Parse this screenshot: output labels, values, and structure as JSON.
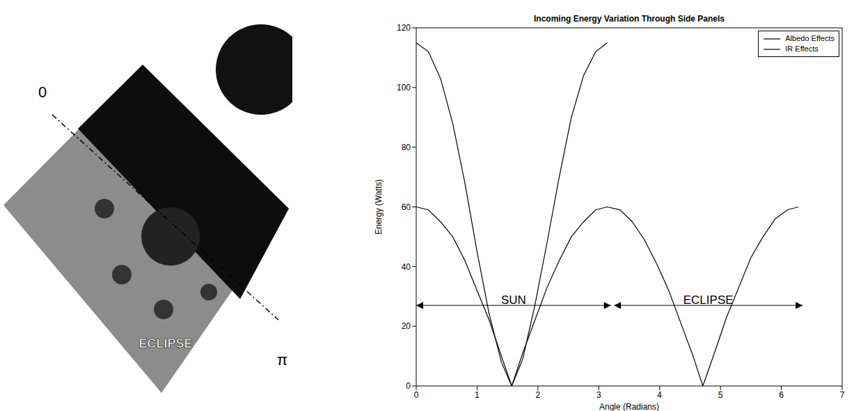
{
  "diagram": {
    "labels": {
      "start": "0",
      "end": "π",
      "eclipse": "ECLIPSE"
    }
  },
  "chart_data": {
    "type": "line",
    "title": "Incoming Energy Variation Through Side Panels",
    "x_label": "Angle (Radians)",
    "y_label": "Energy (Watts)",
    "x": [
      0,
      0.2,
      0.4,
      0.6,
      0.8,
      1.0,
      1.2,
      1.4,
      1.57,
      1.75,
      1.95,
      2.15,
      2.35,
      2.55,
      2.75,
      2.95,
      3.14,
      3.35,
      3.55,
      3.75,
      3.95,
      4.15,
      4.35,
      4.55,
      4.71,
      4.9,
      5.1,
      5.3,
      5.5,
      5.7,
      5.9,
      6.1,
      6.28
    ],
    "series": [
      {
        "name": "Albedo Effects",
        "color": "#000000",
        "values": [
          115,
          112,
          103,
          88,
          68,
          45,
          24,
          8,
          0,
          9,
          27,
          48,
          70,
          90,
          104,
          112,
          115,
          null,
          null,
          null,
          null,
          null,
          null,
          null,
          null,
          null,
          null,
          null,
          null,
          null,
          null,
          null,
          null
        ]
      },
      {
        "name": "IR Effects",
        "color": "#000000",
        "values": [
          60,
          59,
          55,
          50,
          42,
          32,
          22,
          10,
          0,
          11,
          22,
          33,
          42,
          50,
          55,
          59,
          60,
          59,
          55,
          49,
          41,
          32,
          21,
          10,
          0,
          11,
          23,
          33,
          43,
          50,
          56,
          59,
          60
        ]
      }
    ],
    "annotations": [
      {
        "text": "SUN",
        "x": [
          0,
          3.2
        ],
        "y": 27
      },
      {
        "text": "ECLIPSE",
        "x": [
          3.25,
          6.35
        ],
        "y": 27
      }
    ],
    "xlim": [
      0,
      7
    ],
    "xticks": [
      0,
      1,
      2,
      3,
      4,
      5,
      6,
      7
    ],
    "ylim": [
      0,
      120
    ],
    "yticks": [
      0,
      20,
      40,
      60,
      80,
      100,
      120
    ],
    "grid": false,
    "legend": "upper right"
  }
}
